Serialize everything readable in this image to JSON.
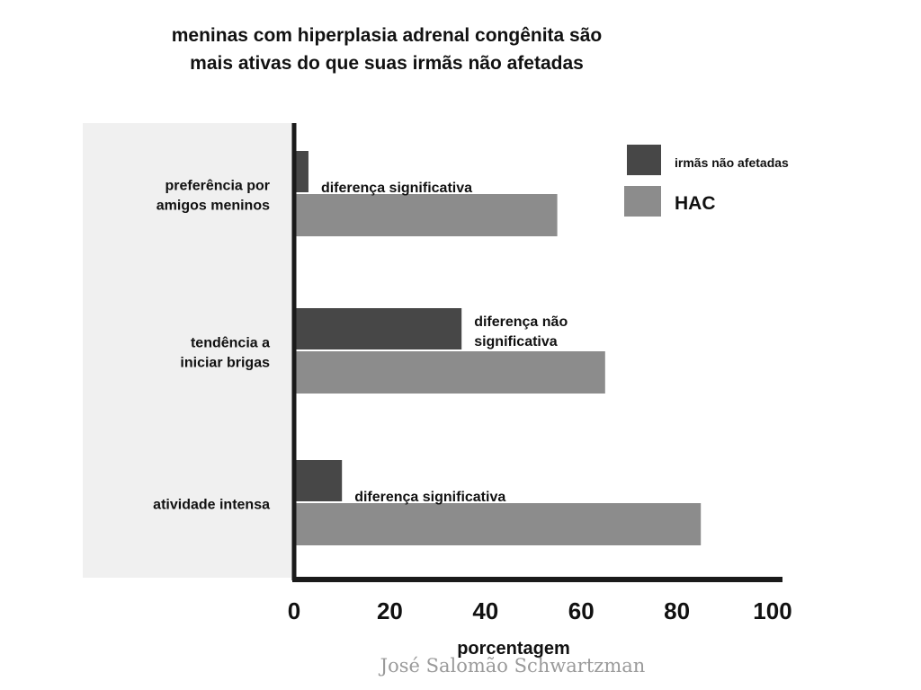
{
  "chart_data": {
    "type": "bar",
    "orientation": "horizontal",
    "title_lines": [
      "meninas com hiperplasia adrenal congênita são",
      "mais ativas do que suas irmãs não afetadas"
    ],
    "xlabel": "porcentagem",
    "xlim": [
      0,
      100
    ],
    "xticks": [
      0,
      20,
      40,
      60,
      80,
      100
    ],
    "categories": [
      [
        "preferência por",
        "amigos meninos"
      ],
      [
        "tendência a",
        "iniciar brigas"
      ],
      [
        "atividade intensa"
      ]
    ],
    "series": [
      {
        "name": "irmãs não afetadas",
        "color": "#474747",
        "values": [
          3,
          35,
          10
        ]
      },
      {
        "name": "HAC",
        "color": "#8c8c8c",
        "values": [
          55,
          65,
          85
        ]
      }
    ],
    "annotations": [
      [
        "diferença significativa"
      ],
      [
        "diferença não",
        "significativa"
      ],
      [
        "diferença significativa"
      ]
    ],
    "legend_position": "top-right",
    "grid": false
  },
  "credit": "José Salomão Schwartzman"
}
